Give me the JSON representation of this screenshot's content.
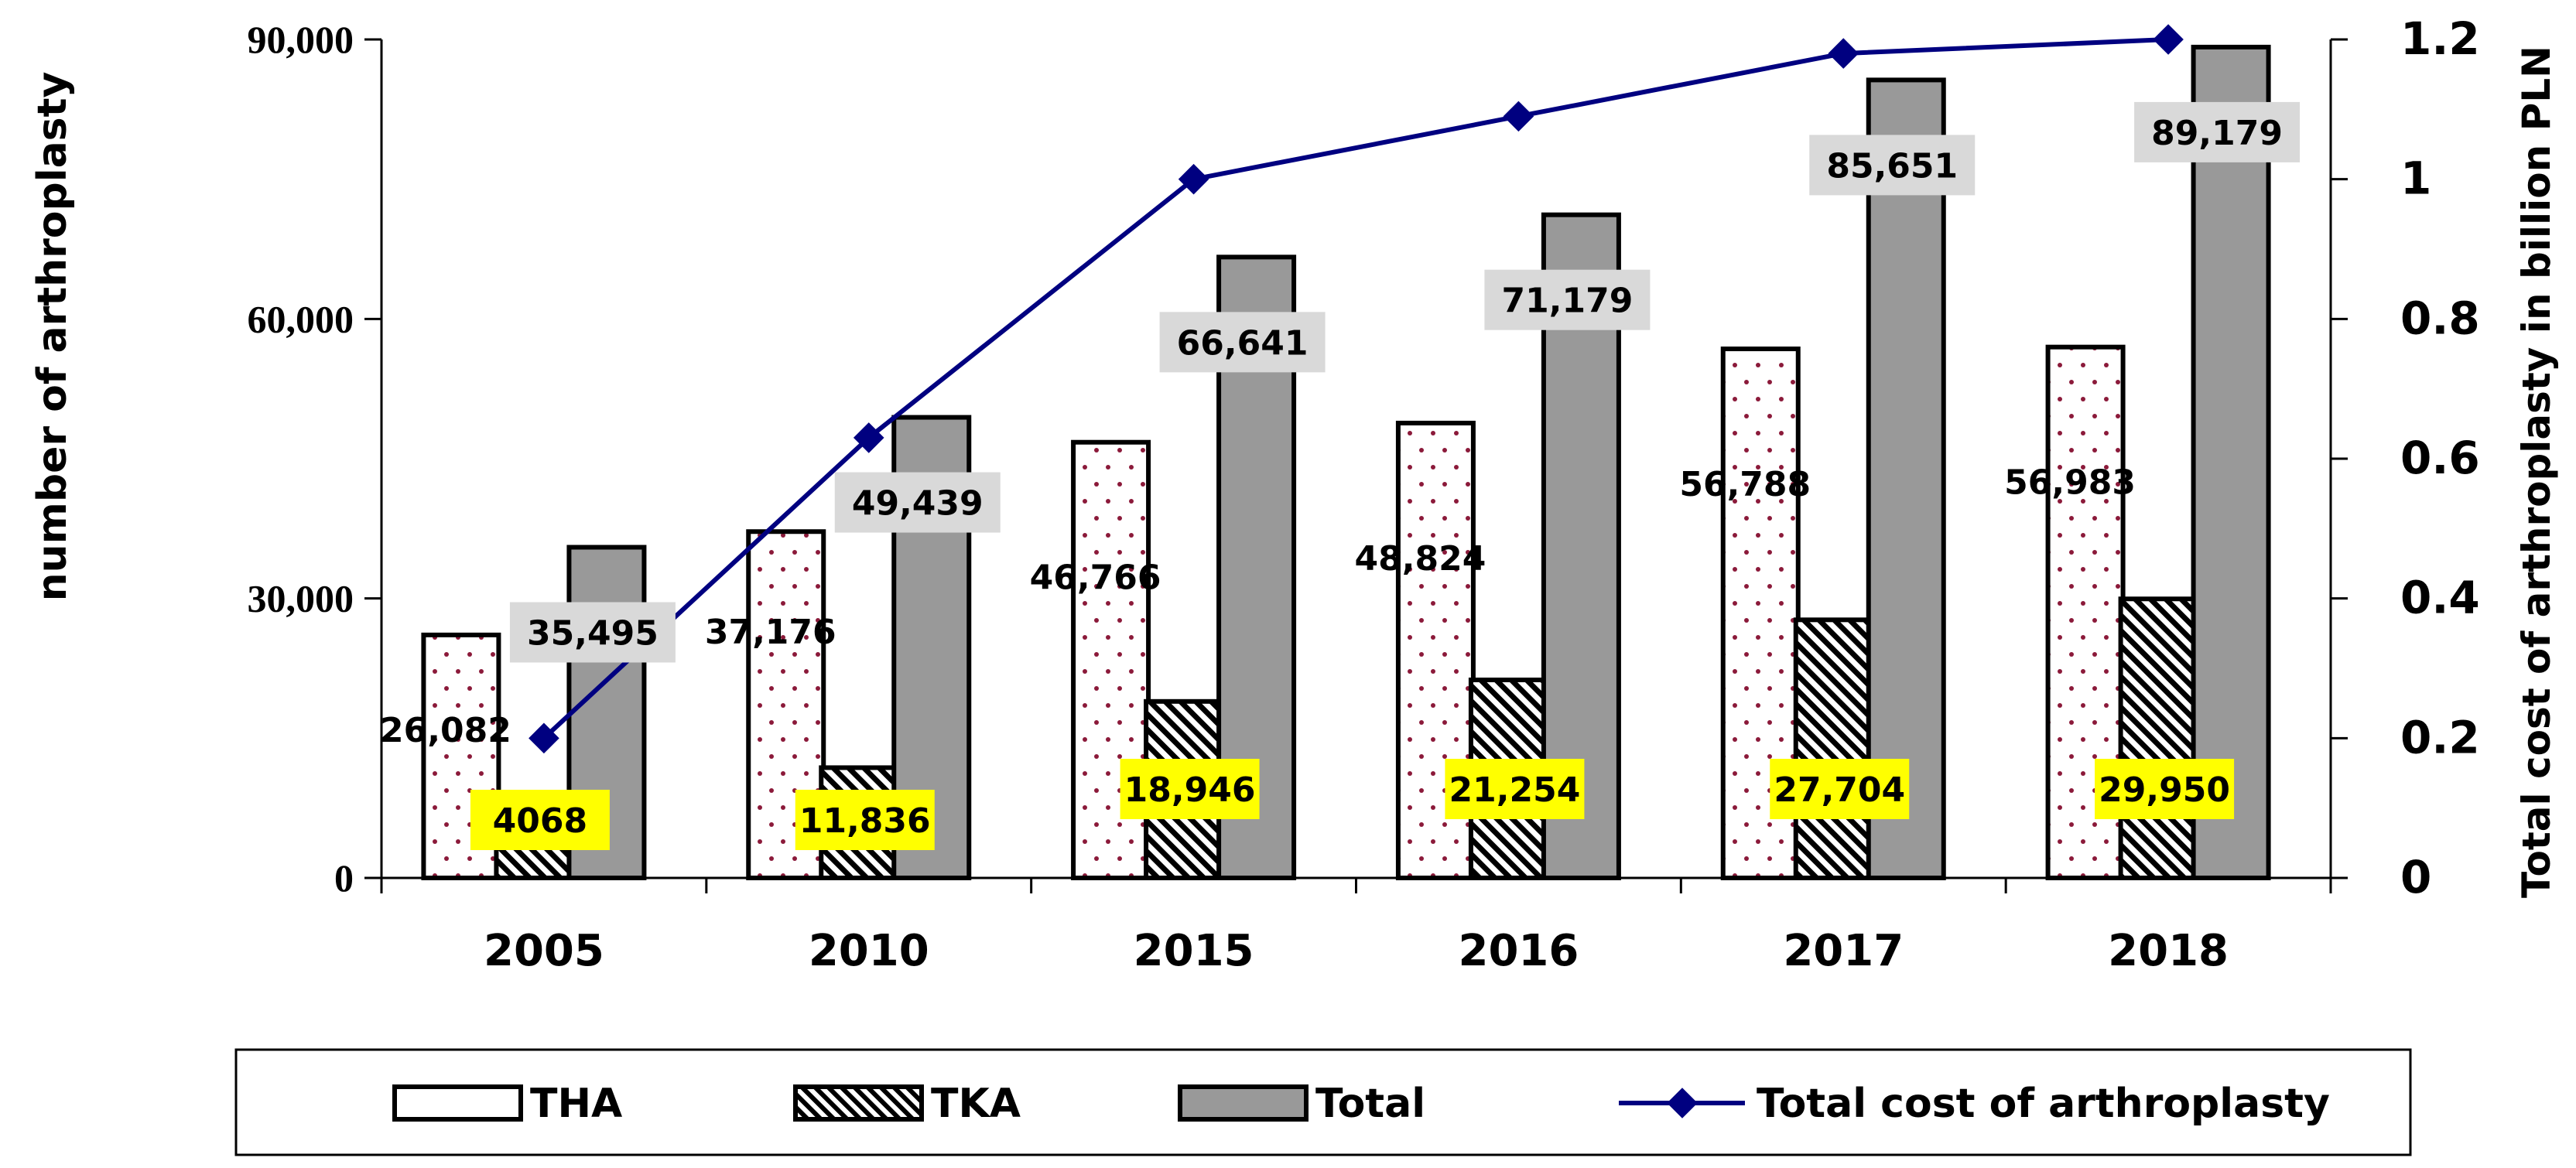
{
  "chart_data": {
    "type": "bar",
    "categories": [
      "2005",
      "2010",
      "2015",
      "2016",
      "2017",
      "2018"
    ],
    "series": [
      {
        "name": "THA",
        "axis": "left",
        "values": [
          26082,
          37176,
          46766,
          48824,
          56788,
          56983
        ],
        "labels": [
          "26,082",
          "37,176",
          "46,766",
          "48,824",
          "56,788",
          "56,983"
        ]
      },
      {
        "name": "TKA",
        "axis": "left",
        "values": [
          4068,
          11836,
          18946,
          21254,
          27704,
          29950
        ],
        "labels": [
          "4068",
          "11,836",
          "18,946",
          "21,254",
          "27,704",
          "29,950"
        ]
      },
      {
        "name": "Total",
        "axis": "left",
        "values": [
          35495,
          49439,
          66641,
          71179,
          85651,
          89179
        ],
        "labels": [
          "35,495",
          "49,439",
          "66,641",
          "71,179",
          "85,651",
          "89,179"
        ]
      },
      {
        "name": "Total cost of arthroplasty",
        "axis": "right",
        "type": "line",
        "values": [
          0.2,
          0.63,
          1.0,
          1.09,
          1.18,
          1.2
        ]
      }
    ],
    "ylabel": "number of arthroplasty",
    "y2label": "Total cost of arthroplasty in billion PLN",
    "ylim": [
      0,
      90000
    ],
    "y2lim": [
      0,
      1.2
    ],
    "yticks": [
      0,
      30000,
      60000,
      90000
    ],
    "ytick_labels": [
      "0",
      "30,000",
      "60,000",
      "90,000"
    ],
    "y2ticks": [
      0,
      0.2,
      0.4,
      0.6,
      0.8,
      1,
      1.2
    ],
    "y2tick_labels": [
      "0",
      "0.2",
      "0.4",
      "0.6",
      "0.8",
      "1",
      "1.2"
    ],
    "legend_position": "bottom",
    "grid": false
  },
  "colors": {
    "tha_fill": "#ffffff",
    "tha_dots": "#8b1a3a",
    "tka_stripe": "#000000",
    "total_fill": "#999999",
    "line": "#000080",
    "tka_label_bg": "#ffff00",
    "total_label_bg": "#d9d9d9"
  }
}
